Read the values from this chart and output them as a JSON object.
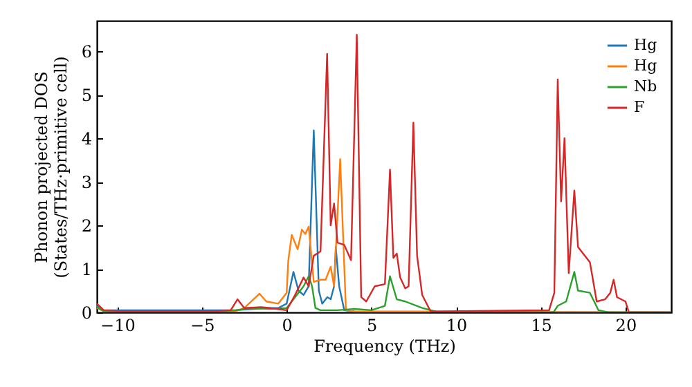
{
  "chart_data": {
    "type": "line",
    "xlabel": "Frequency (THz)",
    "ylabel": "Phonon projected DOS\n(States/THz·primitive cell)",
    "xlim": [
      -11.2,
      22.7
    ],
    "ylim": [
      0,
      6.7
    ],
    "xticks": [
      -10,
      -5,
      0,
      5,
      10,
      15,
      20
    ],
    "yticks": [
      0,
      1,
      2,
      3,
      4,
      5,
      6
    ],
    "grid": false,
    "legend": "top right",
    "marker": "none",
    "line_style": "solid",
    "series": [
      {
        "name": "Hg",
        "color": "#1f77b4",
        "x": [
          -11.2,
          -10.8,
          -3,
          -2,
          -1,
          -0.5,
          0,
          0.4,
          0.7,
          1.0,
          1.3,
          1.6,
          1.9,
          2.1,
          2.4,
          2.6,
          2.8,
          2.9,
          3.1,
          3.4,
          4,
          22.7
        ],
        "values": [
          0.15,
          0.05,
          0.05,
          0.08,
          0.1,
          0.1,
          0.2,
          0.93,
          0.5,
          0.4,
          0.6,
          4.18,
          0.5,
          0.2,
          0.35,
          0.3,
          0.6,
          1.5,
          0.6,
          0.05,
          0.02,
          0
        ]
      },
      {
        "name": "Hg",
        "color": "#ff7f0e",
        "x": [
          -11.2,
          -10.8,
          -10,
          -4,
          -3,
          -2.5,
          -1.6,
          -1.2,
          -0.5,
          0,
          0.1,
          0.3,
          0.65,
          0.9,
          1.1,
          1.3,
          1.6,
          2.0,
          2.3,
          2.6,
          2.8,
          3.16,
          3.5,
          4,
          22.7
        ],
        "values": [
          0.1,
          0.03,
          0.02,
          0.02,
          0.03,
          0.1,
          0.43,
          0.25,
          0.2,
          0.45,
          1.2,
          1.78,
          1.45,
          1.9,
          1.8,
          1.97,
          0.7,
          0.75,
          0.75,
          1.05,
          0.6,
          3.52,
          0.05,
          0.02,
          0
        ]
      },
      {
        "name": "Nb",
        "color": "#2ca02c",
        "x": [
          -11.2,
          -10.8,
          -10,
          -4,
          -3,
          -2,
          -1,
          0,
          0.5,
          1.0,
          1.3,
          1.5,
          1.7,
          2.0,
          3,
          4,
          5,
          5.8,
          6.1,
          6.5,
          7,
          8,
          9,
          15.75,
          16,
          16.5,
          16.98,
          17.2,
          17.9,
          18.4,
          19,
          22.7
        ],
        "values": [
          0.12,
          0.03,
          0.02,
          0.02,
          0.05,
          0.1,
          0.08,
          0.1,
          0.35,
          0.6,
          0.83,
          0.6,
          0.1,
          0.05,
          0.05,
          0.08,
          0.05,
          0.15,
          0.83,
          0.3,
          0.25,
          0.1,
          0,
          0,
          0.15,
          0.25,
          0.93,
          0.5,
          0.45,
          0.05,
          0,
          0
        ]
      },
      {
        "name": "F",
        "color": "#d62728",
        "x": [
          -11.2,
          -10.8,
          -10,
          -4,
          -3.3,
          -2.9,
          -2.5,
          -1.5,
          -1,
          0,
          0.5,
          1.0,
          1.3,
          1.6,
          2.0,
          2.39,
          2.6,
          2.8,
          3.0,
          3.4,
          3.8,
          4.14,
          4.4,
          4.7,
          5.2,
          5.8,
          6.1,
          6.3,
          6.5,
          6.7,
          7.0,
          7.2,
          7.48,
          7.7,
          8.0,
          8.5,
          15.49,
          15.8,
          16.0,
          16.2,
          16.4,
          16.65,
          16.98,
          17.2,
          17.9,
          18.3,
          18.8,
          19.1,
          19.3,
          19.5,
          20.0,
          20.2,
          22.7
        ],
        "values": [
          0.2,
          0.05,
          0.03,
          0.03,
          0.05,
          0.3,
          0.1,
          0.12,
          0.1,
          0.05,
          0.4,
          0.8,
          0.6,
          1.3,
          1.4,
          5.94,
          2.0,
          2.5,
          1.6,
          1.55,
          1.2,
          6.38,
          0.35,
          0.25,
          0.6,
          0.65,
          3.28,
          1.25,
          1.35,
          0.8,
          0.55,
          0.6,
          4.36,
          1.3,
          0.4,
          0.02,
          0.05,
          0.45,
          5.35,
          2.55,
          4.0,
          0.9,
          2.8,
          1.5,
          1.15,
          0.25,
          0.3,
          0.45,
          0.75,
          0.35,
          0.25,
          0,
          0
        ]
      }
    ]
  }
}
